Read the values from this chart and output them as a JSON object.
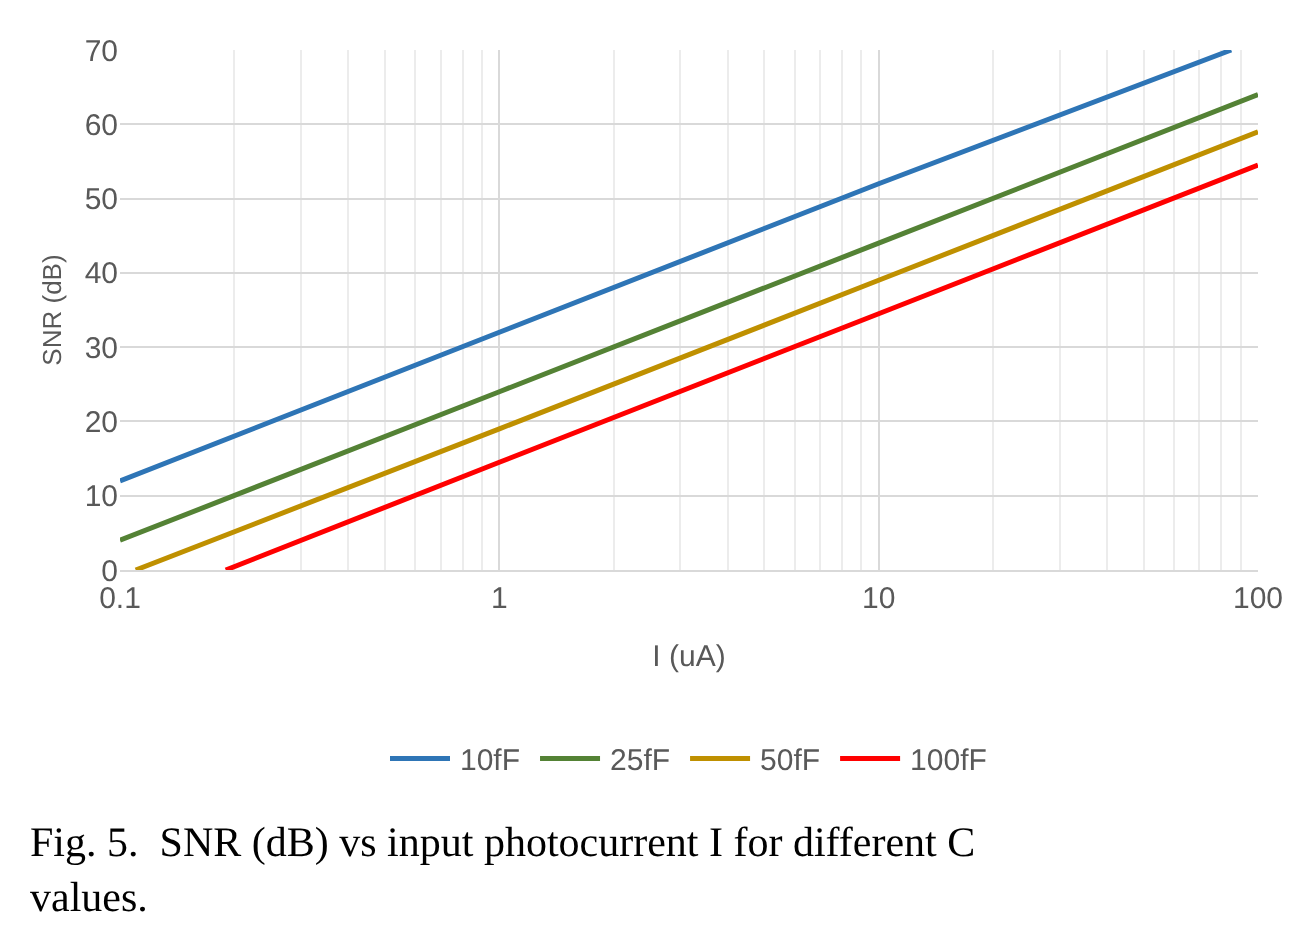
{
  "chart_data": {
    "type": "line",
    "xlabel": "I (uA)",
    "ylabel": "SNR (dB)",
    "annotations": [
      "Fig. 5.  SNR (dB) vs input photocurrent I for different C values."
    ],
    "log": "x",
    "xlim": [
      0.1,
      100
    ],
    "xticks": [
      0.1,
      1,
      10,
      100
    ],
    "ylim": [
      0,
      70
    ],
    "yticks": [
      0,
      10,
      20,
      30,
      40,
      50,
      60,
      70
    ],
    "grid": true,
    "legend": "bottom",
    "marker": "none",
    "line_style": "solid",
    "series": [
      {
        "name": "10fF",
        "color": "#2e75b6",
        "x": [
          0.1,
          1,
          10,
          85
        ],
        "values": [
          12,
          32,
          52,
          70
        ]
      },
      {
        "name": "25fF",
        "color": "#548235",
        "x": [
          0.1,
          1,
          10,
          100
        ],
        "values": [
          4,
          24,
          44,
          64
        ]
      },
      {
        "name": "50fF",
        "color": "#bf9000",
        "x": [
          0.11,
          1,
          10,
          100
        ],
        "values": [
          0,
          19,
          39,
          59
        ]
      },
      {
        "name": "100fF",
        "color": "#ff0000",
        "x": [
          0.19,
          1,
          10,
          100
        ],
        "values": [
          0,
          14.5,
          34.5,
          54.5
        ]
      }
    ]
  }
}
